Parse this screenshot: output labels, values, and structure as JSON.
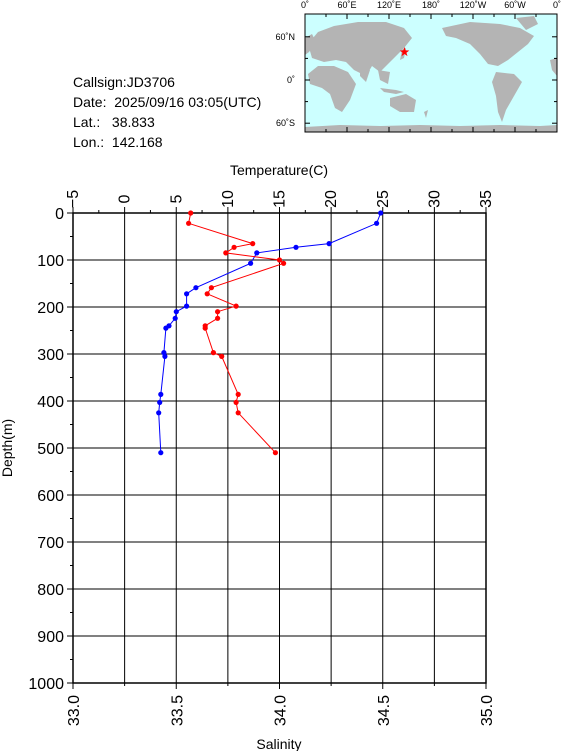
{
  "info": {
    "callsign": "Callsign:JD3706",
    "date": "Date:  2025/09/16 03:05(UTC)",
    "lat": "Lat.:   38.833",
    "lon": "Lon.:  142.168"
  },
  "map": {
    "lon_ticks": [
      "0˚",
      "60˚E",
      "120˚E",
      "180˚",
      "120˚W",
      "60˚W",
      "0˚"
    ],
    "lat_ticks": [
      "60˚N",
      "0˚",
      "60˚S"
    ],
    "ocean_color": "#ccffff",
    "land_color": "#b4b4b4",
    "station": {
      "lon": 142.168,
      "lat": 38.833,
      "marker_color": "#ff0000"
    }
  },
  "chart_data": {
    "type": "line",
    "ylabel": "Depth(m)",
    "y_ticks": [
      "0",
      "100",
      "200",
      "300",
      "400",
      "500",
      "600",
      "700",
      "800",
      "900",
      "1000"
    ],
    "ylim": [
      0,
      1000
    ],
    "y_inverted": true,
    "top_axis": {
      "label": "Temperature(C)",
      "range": [
        -5,
        35
      ],
      "ticks": [
        "−5",
        "0",
        "5",
        "10",
        "15",
        "20",
        "25",
        "30",
        "35"
      ]
    },
    "bottom_axis": {
      "label": "Salinity",
      "range": [
        33.0,
        35.0
      ],
      "ticks": [
        "33.0",
        "33.5",
        "34.0",
        "34.5",
        "35.0"
      ]
    },
    "grid": true,
    "series": [
      {
        "axis": "top",
        "color": "#0000ff",
        "points": [
          {
            "x": 24.8,
            "y": 0
          },
          {
            "x": 24.4,
            "y": 22
          },
          {
            "x": 19.8,
            "y": 65
          },
          {
            "x": 16.6,
            "y": 73
          },
          {
            "x": 12.8,
            "y": 85
          },
          {
            "x": 12.2,
            "y": 107
          },
          {
            "x": 6.9,
            "y": 159
          },
          {
            "x": 6.0,
            "y": 172
          },
          {
            "x": 6.0,
            "y": 198
          },
          {
            "x": 5.0,
            "y": 210
          },
          {
            "x": 4.9,
            "y": 224
          },
          {
            "x": 4.3,
            "y": 240
          },
          {
            "x": 4.0,
            "y": 245
          },
          {
            "x": 3.8,
            "y": 297
          },
          {
            "x": 3.9,
            "y": 305
          },
          {
            "x": 3.5,
            "y": 386
          },
          {
            "x": 3.4,
            "y": 403
          },
          {
            "x": 3.3,
            "y": 425
          },
          {
            "x": 3.5,
            "y": 510
          }
        ]
      },
      {
        "axis": "bottom",
        "color": "#ff0000",
        "points": [
          {
            "x": 33.57,
            "y": 0
          },
          {
            "x": 33.56,
            "y": 22
          },
          {
            "x": 33.87,
            "y": 65
          },
          {
            "x": 33.78,
            "y": 73
          },
          {
            "x": 33.74,
            "y": 85
          },
          {
            "x": 34.0,
            "y": 100
          },
          {
            "x": 34.02,
            "y": 107
          },
          {
            "x": 33.67,
            "y": 159
          },
          {
            "x": 33.65,
            "y": 172
          },
          {
            "x": 33.79,
            "y": 198
          },
          {
            "x": 33.7,
            "y": 210
          },
          {
            "x": 33.7,
            "y": 224
          },
          {
            "x": 33.64,
            "y": 240
          },
          {
            "x": 33.64,
            "y": 245
          },
          {
            "x": 33.68,
            "y": 297
          },
          {
            "x": 33.72,
            "y": 305
          },
          {
            "x": 33.8,
            "y": 386
          },
          {
            "x": 33.79,
            "y": 403
          },
          {
            "x": 33.8,
            "y": 425
          },
          {
            "x": 33.98,
            "y": 510
          }
        ]
      }
    ]
  }
}
